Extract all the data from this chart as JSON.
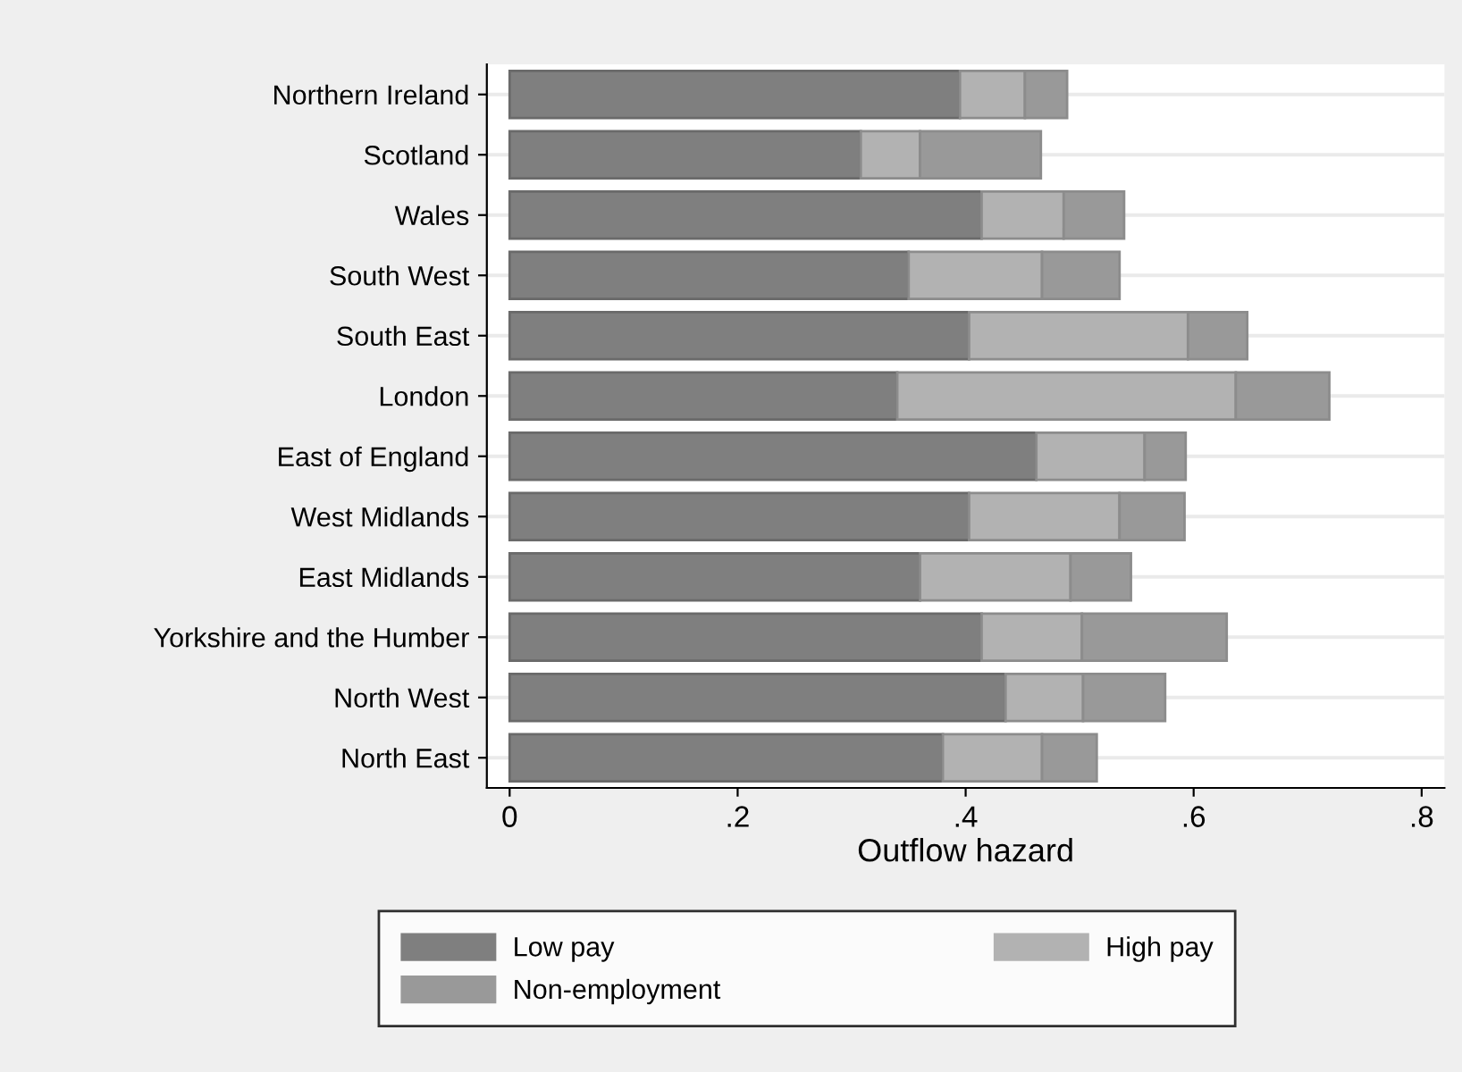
{
  "chart_data": {
    "type": "bar",
    "orientation": "horizontal",
    "stacked": true,
    "xlabel": "Outflow hazard",
    "categories": [
      "Northern Ireland",
      "Scotland",
      "Wales",
      "South West",
      "South East",
      "London",
      "East of England",
      "West Midlands",
      "East Midlands",
      "Yorkshire and the Humber",
      "North West",
      "North East"
    ],
    "series": [
      {
        "name": "Low pay",
        "color": "#7f7f7f",
        "values": [
          0.395,
          0.308,
          0.414,
          0.35,
          0.403,
          0.34,
          0.462,
          0.403,
          0.36,
          0.414,
          0.435,
          0.38
        ]
      },
      {
        "name": "High pay",
        "color": "#b2b2b2",
        "values": [
          0.057,
          0.052,
          0.072,
          0.117,
          0.192,
          0.297,
          0.095,
          0.132,
          0.132,
          0.088,
          0.068,
          0.087
        ]
      },
      {
        "name": "Non-employment",
        "color": "#999999",
        "values": [
          0.037,
          0.106,
          0.053,
          0.068,
          0.052,
          0.082,
          0.036,
          0.057,
          0.053,
          0.127,
          0.072,
          0.048
        ]
      }
    ],
    "xlim": [
      -0.02,
      0.82
    ],
    "xticks": [
      {
        "value": 0,
        "label": "0"
      },
      {
        "value": 0.2,
        "label": ".2"
      },
      {
        "value": 0.4,
        "label": ".4"
      },
      {
        "value": 0.6,
        "label": ".6"
      },
      {
        "value": 0.8,
        "label": ".8"
      }
    ],
    "grid": "y",
    "legend": "bottom"
  }
}
